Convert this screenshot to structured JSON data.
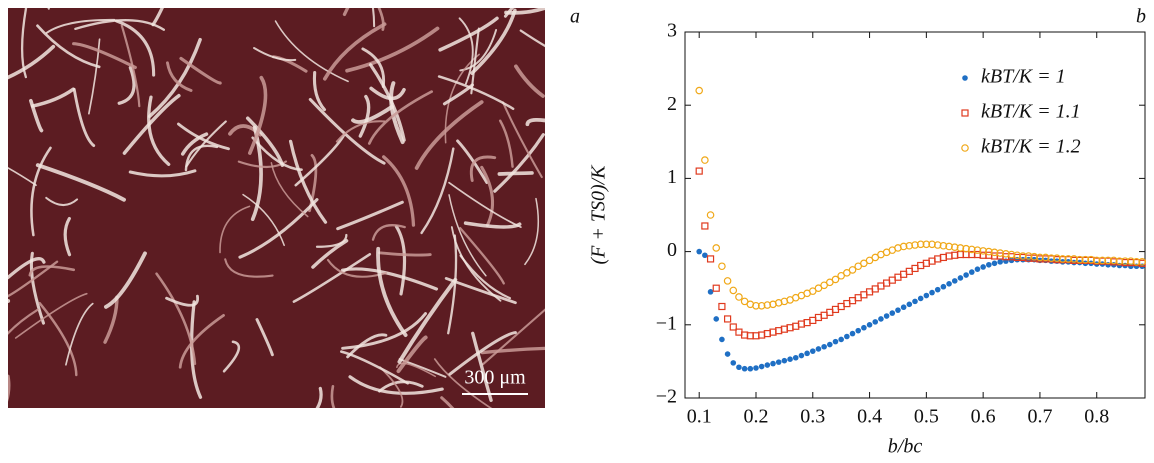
{
  "panel_labels": [
    "a",
    "b"
  ],
  "scale_bar": "300 μm",
  "chart_data": {
    "type": "scatter",
    "xlabel": "b/bc",
    "ylabel": "(F + TS0)/K",
    "xlim": [
      0.075,
      0.885
    ],
    "ylim": [
      -2,
      3
    ],
    "xticks": [
      0.1,
      0.2,
      0.3,
      0.4,
      0.5,
      0.6,
      0.7,
      0.8
    ],
    "yticks": [
      {
        "value": -2,
        "label": "−2"
      },
      {
        "value": -1,
        "label": "−1"
      },
      0,
      1,
      2,
      3
    ],
    "legend": "upper right",
    "x": [
      0.1,
      0.11,
      0.12,
      0.13,
      0.14,
      0.15,
      0.16,
      0.17,
      0.18,
      0.19,
      0.2,
      0.21,
      0.22,
      0.23,
      0.24,
      0.25,
      0.26,
      0.27,
      0.28,
      0.29,
      0.3,
      0.31,
      0.32,
      0.33,
      0.34,
      0.35,
      0.36,
      0.37,
      0.38,
      0.39,
      0.4,
      0.41,
      0.42,
      0.43,
      0.44,
      0.45,
      0.46,
      0.47,
      0.48,
      0.49,
      0.5,
      0.51,
      0.52,
      0.53,
      0.54,
      0.55,
      0.56,
      0.57,
      0.58,
      0.59,
      0.6,
      0.61,
      0.62,
      0.63,
      0.64,
      0.65,
      0.66,
      0.67,
      0.68,
      0.69,
      0.7,
      0.71,
      0.72,
      0.73,
      0.74,
      0.75,
      0.76,
      0.77,
      0.78,
      0.79,
      0.8,
      0.81,
      0.82,
      0.83,
      0.84,
      0.85,
      0.86,
      0.87,
      0.88
    ],
    "series": [
      {
        "name": "kBT/K = 1",
        "color": "#1f6fc4",
        "marker": "filled-circle",
        "values": [
          0.0,
          -0.05,
          -0.55,
          -0.92,
          -1.2,
          -1.4,
          -1.52,
          -1.58,
          -1.6,
          -1.6,
          -1.59,
          -1.57,
          -1.55,
          -1.53,
          -1.51,
          -1.49,
          -1.47,
          -1.45,
          -1.42,
          -1.39,
          -1.36,
          -1.33,
          -1.3,
          -1.27,
          -1.23,
          -1.2,
          -1.16,
          -1.12,
          -1.08,
          -1.04,
          -1.0,
          -0.96,
          -0.92,
          -0.88,
          -0.84,
          -0.8,
          -0.76,
          -0.72,
          -0.68,
          -0.64,
          -0.6,
          -0.56,
          -0.52,
          -0.48,
          -0.44,
          -0.4,
          -0.36,
          -0.32,
          -0.28,
          -0.24,
          -0.21,
          -0.18,
          -0.16,
          -0.14,
          -0.13,
          -0.12,
          -0.11,
          -0.11,
          -0.11,
          -0.11,
          -0.12,
          -0.12,
          -0.13,
          -0.13,
          -0.14,
          -0.14,
          -0.15,
          -0.15,
          -0.16,
          -0.16,
          -0.17,
          -0.17,
          -0.18,
          -0.18,
          -0.19,
          -0.19,
          -0.2,
          -0.2,
          -0.2
        ]
      },
      {
        "name": "kBT/K = 1.1",
        "color": "#e03a1e",
        "marker": "open-square",
        "values": [
          1.1,
          0.35,
          -0.1,
          -0.5,
          -0.75,
          -0.92,
          -1.03,
          -1.1,
          -1.14,
          -1.15,
          -1.15,
          -1.14,
          -1.12,
          -1.1,
          -1.08,
          -1.06,
          -1.04,
          -1.02,
          -0.99,
          -0.97,
          -0.94,
          -0.9,
          -0.87,
          -0.83,
          -0.79,
          -0.75,
          -0.71,
          -0.67,
          -0.63,
          -0.59,
          -0.55,
          -0.51,
          -0.47,
          -0.43,
          -0.39,
          -0.35,
          -0.31,
          -0.27,
          -0.23,
          -0.19,
          -0.16,
          -0.13,
          -0.1,
          -0.08,
          -0.06,
          -0.05,
          -0.04,
          -0.04,
          -0.04,
          -0.04,
          -0.05,
          -0.05,
          -0.06,
          -0.06,
          -0.07,
          -0.07,
          -0.08,
          -0.08,
          -0.09,
          -0.09,
          -0.1,
          -0.1,
          -0.1,
          -0.11,
          -0.11,
          -0.11,
          -0.12,
          -0.12,
          -0.12,
          -0.12,
          -0.13,
          -0.13,
          -0.13,
          -0.14,
          -0.14,
          -0.15,
          -0.15,
          -0.15,
          -0.16
        ]
      },
      {
        "name": "kBT/K = 1.2",
        "color": "#f0a818",
        "marker": "open-circle",
        "values": [
          2.2,
          1.25,
          0.5,
          0.05,
          -0.2,
          -0.4,
          -0.53,
          -0.62,
          -0.68,
          -0.72,
          -0.74,
          -0.74,
          -0.73,
          -0.72,
          -0.7,
          -0.68,
          -0.66,
          -0.63,
          -0.6,
          -0.57,
          -0.54,
          -0.5,
          -0.46,
          -0.42,
          -0.38,
          -0.33,
          -0.29,
          -0.25,
          -0.2,
          -0.16,
          -0.12,
          -0.08,
          -0.04,
          -0.01,
          0.02,
          0.05,
          0.07,
          0.08,
          0.09,
          0.1,
          0.1,
          0.1,
          0.09,
          0.08,
          0.07,
          0.06,
          0.05,
          0.04,
          0.03,
          0.02,
          0.01,
          0.0,
          -0.01,
          -0.02,
          -0.03,
          -0.04,
          -0.05,
          -0.06,
          -0.06,
          -0.07,
          -0.08,
          -0.08,
          -0.09,
          -0.09,
          -0.1,
          -0.1,
          -0.1,
          -0.11,
          -0.11,
          -0.11,
          -0.12,
          -0.12,
          -0.12,
          -0.12,
          -0.13,
          -0.13,
          -0.13,
          -0.14,
          -0.14
        ]
      }
    ]
  }
}
